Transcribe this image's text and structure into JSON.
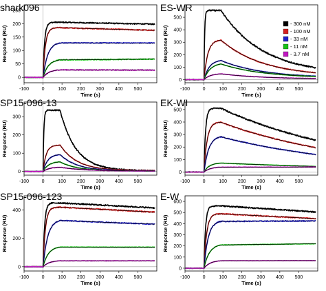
{
  "chart_data": {
    "type": "line",
    "legend": {
      "placement": "top-right",
      "entries": [
        {
          "label": "- 300 nM",
          "color": "#000000"
        },
        {
          "label": "- 100 nM",
          "color": "#d42020"
        },
        {
          "label": "- 33 nM",
          "color": "#2020c8"
        },
        {
          "label": "- 11 nM",
          "color": "#18c018"
        },
        {
          "label": "- 3.7 nM",
          "color": "#c018c0"
        }
      ]
    },
    "fit_line_color": "#000000",
    "injection_start_s": 0,
    "injection_end_s": 90,
    "panels": [
      {
        "title": "shark096",
        "xlabel": "Time (s)",
        "ylabel": "Response (RU)",
        "xlim": [
          -100,
          600
        ],
        "ylim": [
          -20,
          270
        ],
        "xticks": [
          "-100",
          "0",
          "100",
          "200",
          "300",
          "400",
          "500"
        ],
        "yticks": [
          "0",
          "50",
          "100",
          "150",
          "200",
          "250"
        ],
        "yticks_values": [
          0,
          50,
          100,
          150,
          200,
          250
        ],
        "xticks_values": [
          -100,
          0,
          100,
          200,
          300,
          400,
          500
        ],
        "series": [
          {
            "color": "#000000",
            "plateau": 205,
            "end": 198,
            "kon_rate": 0.12,
            "koff": 7e-05,
            "overshoot": 0
          },
          {
            "color": "#d42020",
            "plateau": 185,
            "end": 175,
            "kon_rate": 0.08,
            "koff": 0.0001,
            "overshoot": 0
          },
          {
            "color": "#2020c8",
            "plateau": 132,
            "end": 128,
            "kon_rate": 0.04,
            "koff": 6e-05,
            "overshoot": 0
          },
          {
            "color": "#18c018",
            "plateau": 68,
            "end": 68,
            "kon_rate": 0.035,
            "koff": 0.0,
            "overshoot": 0
          },
          {
            "color": "#c018c0",
            "plateau": 30,
            "end": 27,
            "kon_rate": 0.03,
            "koff": 8e-05,
            "overshoot": 0
          }
        ]
      },
      {
        "title": "ES-WR",
        "xlabel": "Time (s)",
        "ylabel": "Response (RU)",
        "xlim": [
          -100,
          600
        ],
        "ylim": [
          -25,
          600
        ],
        "xticks": [
          "-100",
          "0",
          "100",
          "200",
          "300",
          "400",
          "500"
        ],
        "yticks": [
          "0",
          "100",
          "200",
          "300",
          "400",
          "500"
        ],
        "yticks_values": [
          0,
          100,
          200,
          300,
          400,
          500
        ],
        "xticks_values": [
          -100,
          0,
          100,
          200,
          300,
          400,
          500
        ],
        "series": [
          {
            "color": "#000000",
            "plateau": 555,
            "end": 95,
            "kon_rate": 0.3,
            "koff": 0.0045,
            "overshoot": 0
          },
          {
            "color": "#d42020",
            "plateau": 320,
            "end": 55,
            "kon_rate": 0.05,
            "koff": 0.0045,
            "overshoot": 0
          },
          {
            "color": "#2020c8",
            "plateau": 160,
            "end": 28,
            "kon_rate": 0.035,
            "koff": 0.0045,
            "overshoot": 0
          },
          {
            "color": "#18c018",
            "plateau": 135,
            "end": 25,
            "kon_rate": 0.03,
            "koff": 0.0045,
            "overshoot": 0
          },
          {
            "color": "#c018c0",
            "plateau": 50,
            "end": 9,
            "kon_rate": 0.03,
            "koff": 0.0045,
            "overshoot": 0
          }
        ]
      },
      {
        "title": "SP15-096-13",
        "xlabel": "Time (s)",
        "ylabel": "Response (RU)",
        "xlim": [
          -100,
          600
        ],
        "ylim": [
          -20,
          380
        ],
        "xticks": [
          "-100",
          "0",
          "100",
          "200",
          "300",
          "400",
          "500"
        ],
        "yticks": [
          "0",
          "100",
          "200",
          "300"
        ],
        "yticks_values": [
          0,
          100,
          200,
          300
        ],
        "xticks_values": [
          -100,
          0,
          100,
          200,
          300,
          400,
          500
        ],
        "series": [
          {
            "color": "#000000",
            "plateau": 335,
            "end": 5,
            "kon_rate": 0.25,
            "koff": 0.012,
            "overshoot": 0
          },
          {
            "color": "#d42020",
            "plateau": 145,
            "end": 5,
            "kon_rate": 0.06,
            "koff": 0.011,
            "overshoot": 0
          },
          {
            "color": "#2020c8",
            "plateau": 95,
            "end": 3,
            "kon_rate": 0.04,
            "koff": 0.011,
            "overshoot": 0
          },
          {
            "color": "#18c018",
            "plateau": 55,
            "end": 3,
            "kon_rate": 0.035,
            "koff": 0.011,
            "overshoot": 0
          },
          {
            "color": "#c018c0",
            "plateau": 25,
            "end": 3,
            "kon_rate": 0.03,
            "koff": 0.008,
            "overshoot": 0
          }
        ]
      },
      {
        "title": "EK-WI",
        "xlabel": "Time (s)",
        "ylabel": "Response (RU)",
        "xlim": [
          -100,
          600
        ],
        "ylim": [
          -25,
          560
        ],
        "xticks": [
          "-100",
          "0",
          "100",
          "200",
          "300",
          "400",
          "500"
        ],
        "yticks": [
          "0",
          "100",
          "200",
          "300",
          "400",
          "500"
        ],
        "yticks_values": [
          0,
          100,
          200,
          300,
          400,
          500
        ],
        "xticks_values": [
          -100,
          0,
          100,
          200,
          300,
          400,
          500
        ],
        "series": [
          {
            "color": "#000000",
            "plateau": 510,
            "end": 255,
            "kon_rate": 0.12,
            "koff": 0.0014,
            "overshoot": 0
          },
          {
            "color": "#d42020",
            "plateau": 400,
            "end": 195,
            "kon_rate": 0.06,
            "koff": 0.0014,
            "overshoot": 0
          },
          {
            "color": "#2020c8",
            "plateau": 290,
            "end": 140,
            "kon_rate": 0.04,
            "koff": 0.0014,
            "overshoot": 0
          },
          {
            "color": "#18c018",
            "plateau": 75,
            "end": 45,
            "kon_rate": 0.035,
            "koff": 0.001,
            "overshoot": 0
          },
          {
            "color": "#c018c0",
            "plateau": 42,
            "end": 40,
            "kon_rate": 0.03,
            "koff": 0.0001,
            "overshoot": 0
          }
        ]
      },
      {
        "title": "SP15-096-123",
        "xlabel": "Time (s)",
        "ylabel": "Response (RU)",
        "xlim": [
          -100,
          600
        ],
        "ylim": [
          -30,
          500
        ],
        "xticks": [
          "-100",
          "0",
          "100",
          "200",
          "300",
          "400",
          "500"
        ],
        "yticks": [
          "0",
          "200",
          "400"
        ],
        "yticks_values": [
          0,
          200,
          400
        ],
        "xticks_values": [
          -100,
          0,
          100,
          200,
          300,
          400,
          500
        ],
        "series": [
          {
            "color": "#000000",
            "plateau": 450,
            "end": 415,
            "kon_rate": 0.12,
            "koff": 0.0002,
            "overshoot": 0
          },
          {
            "color": "#d42020",
            "plateau": 420,
            "end": 385,
            "kon_rate": 0.08,
            "koff": 0.0002,
            "overshoot": 0
          },
          {
            "color": "#2020c8",
            "plateau": 335,
            "end": 300,
            "kon_rate": 0.04,
            "koff": 0.00025,
            "overshoot": 0
          },
          {
            "color": "#18c018",
            "plateau": 145,
            "end": 138,
            "kon_rate": 0.035,
            "koff": 0.0001,
            "overshoot": 0
          },
          {
            "color": "#c018c0",
            "plateau": 45,
            "end": 42,
            "kon_rate": 0.03,
            "koff": 0.0001,
            "overshoot": 0
          }
        ]
      },
      {
        "title": "E-W",
        "xlabel": "Time (s)",
        "ylabel": "Response (RU)",
        "xlim": [
          -100,
          600
        ],
        "ylim": [
          -25,
          650
        ],
        "xticks": [
          "-100",
          "0",
          "100",
          "200",
          "300",
          "400",
          "500"
        ],
        "yticks": [
          "0",
          "100",
          "200",
          "300",
          "400",
          "500",
          "600"
        ],
        "yticks_values": [
          0,
          100,
          200,
          300,
          400,
          500,
          600
        ],
        "xticks_values": [
          -100,
          0,
          100,
          200,
          300,
          400,
          500
        ],
        "series": [
          {
            "color": "#000000",
            "plateau": 560,
            "end": 505,
            "kon_rate": 0.12,
            "koff": 0.0002,
            "overshoot": 0
          },
          {
            "color": "#d42020",
            "plateau": 490,
            "end": 445,
            "kon_rate": 0.07,
            "koff": 0.0002,
            "overshoot": 0
          },
          {
            "color": "#2020c8",
            "plateau": 428,
            "end": 425,
            "kon_rate": 0.045,
            "koff": 0.0,
            "overshoot": 0
          },
          {
            "color": "#18c018",
            "plateau": 218,
            "end": 220,
            "kon_rate": 0.035,
            "koff": 0.0,
            "overshoot": 0
          },
          {
            "color": "#c018c0",
            "plateau": 72,
            "end": 68,
            "kon_rate": 0.03,
            "koff": 0.0001,
            "overshoot": 0
          }
        ]
      }
    ]
  }
}
